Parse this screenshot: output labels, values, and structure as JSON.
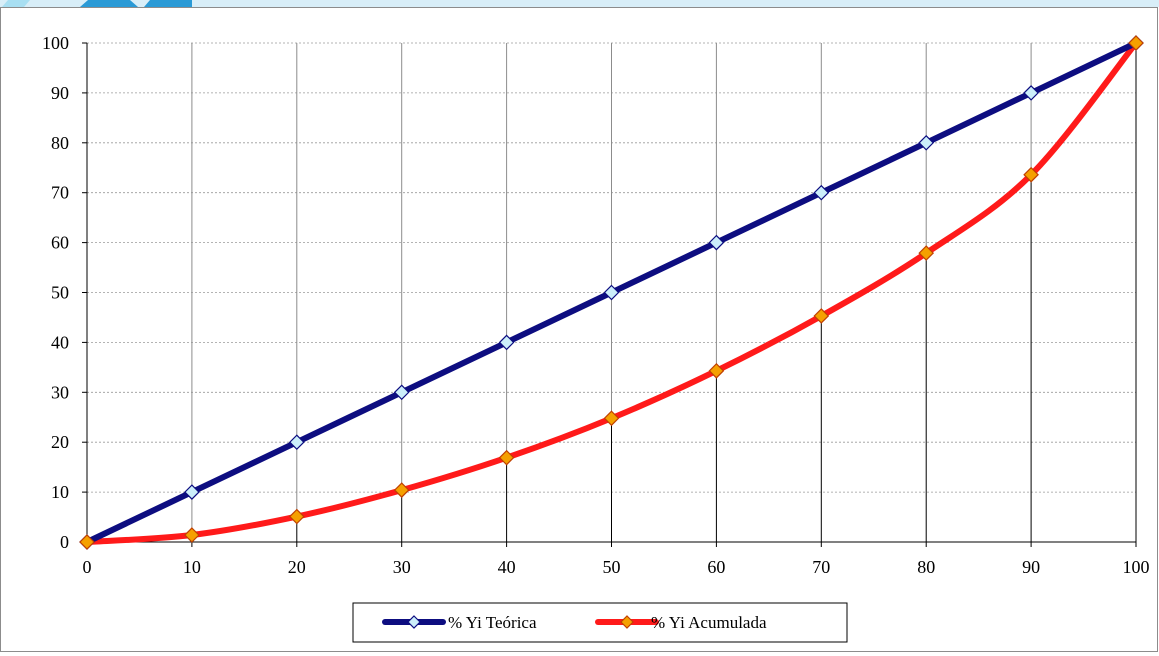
{
  "chart_data": {
    "type": "line",
    "title": "",
    "xlabel": "",
    "ylabel": "",
    "xlim": [
      0,
      100
    ],
    "ylim": [
      0,
      100
    ],
    "x_ticks": [
      "0",
      "10",
      "20",
      "30",
      "40",
      "50",
      "60",
      "70",
      "80",
      "90",
      "100"
    ],
    "y_ticks": [
      "0",
      "10",
      "20",
      "30",
      "40",
      "50",
      "60",
      "70",
      "80",
      "90",
      "100"
    ],
    "grid": true,
    "legend_position": "bottom-center",
    "series": [
      {
        "name": "% Yi Teórica",
        "color": "#0d0d80",
        "marker_fill": "#cceefa",
        "x": [
          0,
          10,
          20,
          30,
          40,
          50,
          60,
          70,
          80,
          90,
          100
        ],
        "y": [
          0,
          10,
          20,
          30,
          40,
          50,
          60,
          70,
          80,
          90,
          100
        ]
      },
      {
        "name": "% Yi  Acumulada",
        "color": "#ff1a1a",
        "marker_fill": "#f5a000",
        "x": [
          0,
          10,
          20,
          30,
          40,
          50,
          60,
          70,
          80,
          90,
          100
        ],
        "y": [
          0,
          1.4,
          5.1,
          10.4,
          16.9,
          24.8,
          34.3,
          45.3,
          57.9,
          73.6,
          100
        ]
      }
    ]
  },
  "banner": {
    "colors": [
      "#a8dff2",
      "#2a9ad6",
      "#d8eef8"
    ]
  }
}
